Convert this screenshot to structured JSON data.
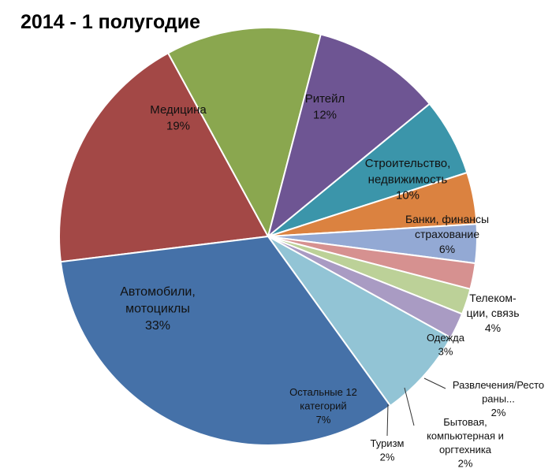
{
  "chart_data": {
    "type": "pie",
    "title": "2014 - 1 полугодие",
    "slices": [
      {
        "name_lines": [
          "Медицина"
        ],
        "percent_label": "19%",
        "value": 19,
        "color": "#A34846"
      },
      {
        "name_lines": [
          "Ритейл"
        ],
        "percent_label": "12%",
        "value": 12,
        "color": "#8AA74F"
      },
      {
        "name_lines": [
          "Строительство,",
          "недвижимость"
        ],
        "percent_label": "10%",
        "value": 10,
        "color": "#6E5593"
      },
      {
        "name_lines": [
          "Банки, финансы",
          "страхование"
        ],
        "percent_label": "6%",
        "value": 6,
        "color": "#3B95AA"
      },
      {
        "name_lines": [
          "Телеком-",
          "ции, связь"
        ],
        "percent_label": "4%",
        "value": 4,
        "color": "#DB8240"
      },
      {
        "name_lines": [
          "Одежда"
        ],
        "percent_label": "3%",
        "value": 3,
        "color": "#93A9D4"
      },
      {
        "name_lines": [
          "Развлечения/Ресто",
          "раны..."
        ],
        "percent_label": "2%",
        "value": 2,
        "color": "#D69190"
      },
      {
        "name_lines": [
          "Бытовая,",
          "компьютерная и",
          "оргтехника"
        ],
        "percent_label": "2%",
        "value": 2,
        "color": "#BCD198"
      },
      {
        "name_lines": [
          "Туризм"
        ],
        "percent_label": "2%",
        "value": 2,
        "color": "#A99BC3"
      },
      {
        "name_lines": [
          "Остальные 12",
          "категорий"
        ],
        "percent_label": "7%",
        "value": 7,
        "color": "#92C4D5"
      },
      {
        "name_lines": [
          "Автомобили,",
          "мотоциклы"
        ],
        "percent_label": "33%",
        "value": 33,
        "color": "#4571A8"
      }
    ]
  }
}
